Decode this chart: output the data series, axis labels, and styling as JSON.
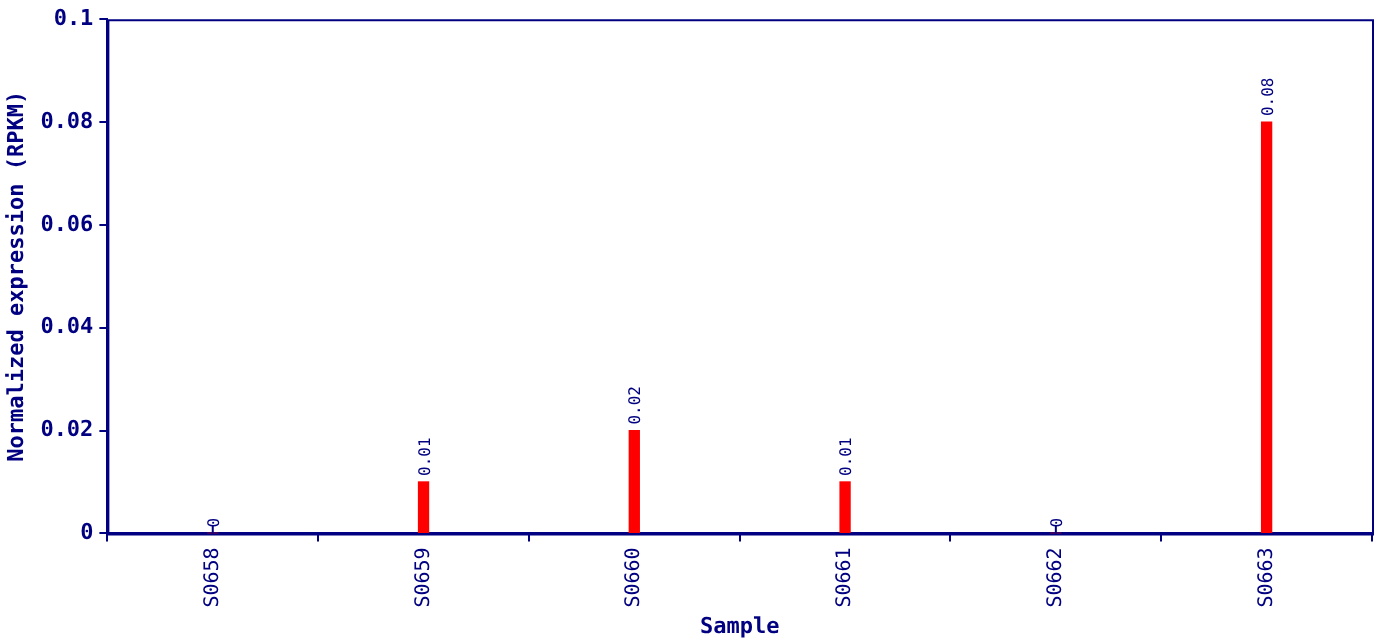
{
  "chart_data": {
    "type": "bar",
    "xlabel": "Sample",
    "ylabel": "Normalized expression (RPKM)",
    "categories": [
      "S0658",
      "S0659",
      "S0660",
      "S0661",
      "S0662",
      "S0663"
    ],
    "values": [
      0,
      0.01,
      0.02,
      0.01,
      0,
      0.08
    ],
    "color": "#ff0000",
    "ylim": [
      0,
      0.1
    ],
    "yticks": [
      0,
      0.02,
      0.04,
      0.06,
      0.08,
      0.1
    ],
    "grid": false,
    "legend": false,
    "data_labels": true
  }
}
